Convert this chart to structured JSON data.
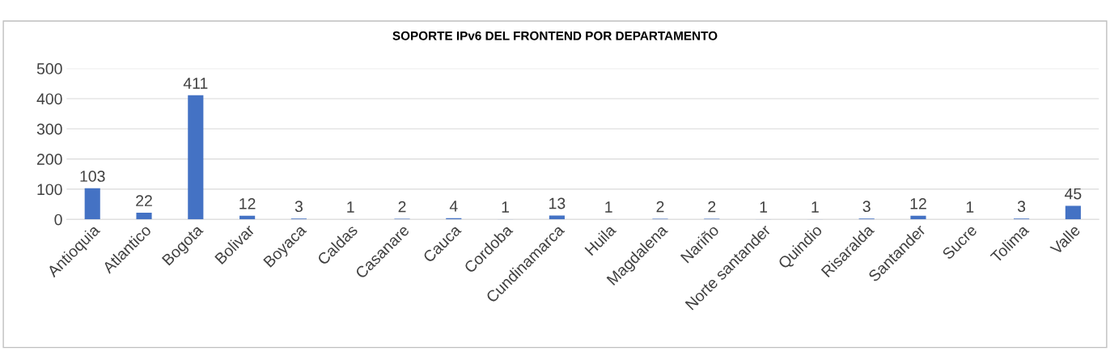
{
  "chart_data": {
    "type": "bar",
    "title": "SOPORTE IPv6 DEL FRONTEND POR DEPARTAMENTO",
    "categories": [
      "Antioquia",
      "Atlantico",
      "Bogota",
      "Bolivar",
      "Boyaca",
      "Caldas",
      "Casanare",
      "Cauca",
      "Cordoba",
      "Cundinamarca",
      "Huila",
      "Magdalena",
      "Nariño",
      "Norte santander",
      "Quindio",
      "Risaralda",
      "Santander",
      "Sucre",
      "Tolima",
      "Valle"
    ],
    "values": [
      103,
      22,
      411,
      12,
      3,
      1,
      2,
      4,
      1,
      13,
      1,
      2,
      2,
      1,
      1,
      3,
      12,
      1,
      3,
      45
    ],
    "color": "#4472c4",
    "ylim": [
      0,
      500
    ],
    "yticks": [
      0,
      100,
      200,
      300,
      400,
      500
    ],
    "grid": "y",
    "data_labels": true,
    "legend": false
  }
}
